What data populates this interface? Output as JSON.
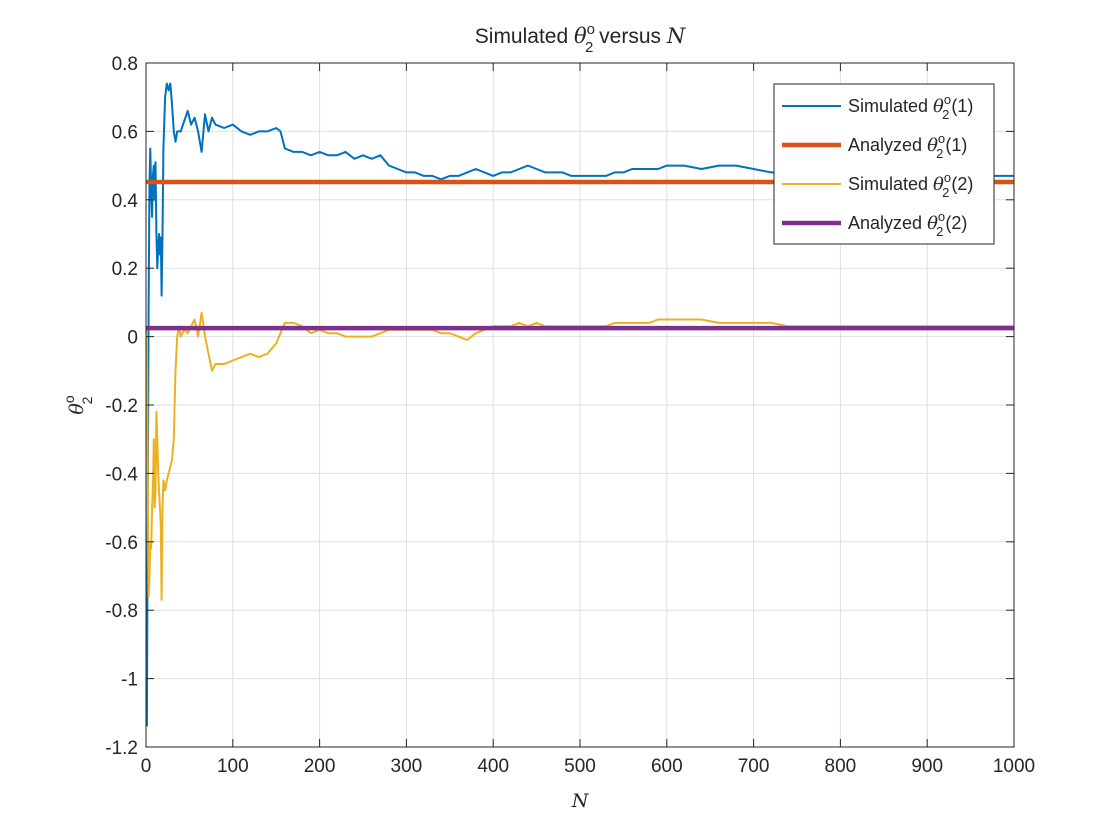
{
  "chart_data": {
    "type": "line",
    "title": {
      "prefix": "Simulated ",
      "symbol": "θ",
      "sup": "o",
      "sub": "2",
      "middle": " versus ",
      "var": "N"
    },
    "xlabel": "N",
    "ylabel": {
      "symbol": "θ",
      "sup": "o",
      "sub": "2"
    },
    "xlim": [
      0,
      1000
    ],
    "ylim": [
      -1.2,
      0.8
    ],
    "xticks": [
      0,
      100,
      200,
      300,
      400,
      500,
      600,
      700,
      800,
      900,
      1000
    ],
    "xtick_labels": [
      "0",
      "100",
      "200",
      "300",
      "400",
      "500",
      "600",
      "700",
      "800",
      "900",
      "1000"
    ],
    "yticks": [
      0.8,
      0.6,
      0.4,
      0.2,
      0,
      -0.2,
      -0.4,
      -0.6,
      -0.8,
      -1,
      -1.2
    ],
    "ytick_labels": [
      "0.8",
      "0.6",
      "0.4",
      "0.2",
      "0",
      "-0.2",
      "-0.4",
      "-0.6",
      "-0.8",
      "-1",
      "-1.2"
    ],
    "grid": true,
    "legend_position": "top-right",
    "series": [
      {
        "name": "Simulated θ2o(1)",
        "legend": {
          "prefix": "Simulated ",
          "symbol": "θ",
          "sup": "o",
          "sub": "2",
          "suffix": "(1)"
        },
        "color": "#0072BD",
        "width": 2,
        "x": [
          1,
          2,
          3,
          4,
          5,
          6,
          7,
          8,
          9,
          10,
          11,
          12,
          13,
          14,
          15,
          16,
          17,
          18,
          19,
          20,
          22,
          24,
          26,
          28,
          30,
          32,
          34,
          36,
          38,
          40,
          44,
          48,
          52,
          56,
          60,
          64,
          68,
          72,
          76,
          80,
          90,
          100,
          110,
          120,
          130,
          140,
          150,
          155,
          160,
          170,
          180,
          190,
          200,
          210,
          220,
          230,
          240,
          250,
          260,
          270,
          280,
          290,
          300,
          310,
          320,
          330,
          340,
          350,
          360,
          370,
          380,
          390,
          400,
          410,
          420,
          430,
          440,
          450,
          460,
          470,
          480,
          490,
          500,
          510,
          520,
          530,
          540,
          550,
          560,
          570,
          580,
          590,
          600,
          620,
          640,
          660,
          680,
          700,
          720,
          740,
          760,
          780,
          800,
          820,
          840,
          860,
          880,
          900,
          920,
          940,
          960,
          980,
          1000
        ],
        "y": [
          -1.14,
          -0.55,
          0.08,
          0.45,
          0.55,
          0.42,
          0.35,
          0.47,
          0.5,
          0.4,
          0.51,
          0.3,
          0.2,
          0.26,
          0.3,
          0.24,
          0.29,
          0.12,
          0.3,
          0.55,
          0.7,
          0.74,
          0.72,
          0.74,
          0.68,
          0.6,
          0.57,
          0.6,
          0.6,
          0.6,
          0.63,
          0.66,
          0.62,
          0.64,
          0.6,
          0.54,
          0.65,
          0.6,
          0.64,
          0.62,
          0.61,
          0.62,
          0.6,
          0.59,
          0.6,
          0.6,
          0.61,
          0.6,
          0.55,
          0.54,
          0.54,
          0.53,
          0.54,
          0.53,
          0.53,
          0.54,
          0.52,
          0.53,
          0.52,
          0.53,
          0.5,
          0.49,
          0.48,
          0.48,
          0.47,
          0.47,
          0.46,
          0.47,
          0.47,
          0.48,
          0.49,
          0.48,
          0.47,
          0.48,
          0.48,
          0.49,
          0.5,
          0.49,
          0.48,
          0.48,
          0.48,
          0.47,
          0.47,
          0.47,
          0.47,
          0.47,
          0.48,
          0.48,
          0.49,
          0.49,
          0.49,
          0.49,
          0.5,
          0.5,
          0.49,
          0.5,
          0.5,
          0.49,
          0.48,
          0.48,
          0.48,
          0.48,
          0.48,
          0.48,
          0.48,
          0.47,
          0.47,
          0.47,
          0.47,
          0.47,
          0.47,
          0.47,
          0.47
        ]
      },
      {
        "name": "Analyzed θ2o(1)",
        "legend": {
          "prefix": "Analyzed ",
          "symbol": "θ",
          "sup": "o",
          "sub": "2",
          "suffix": "(1)"
        },
        "color": "#D95319",
        "width": 4.5,
        "x": [
          0,
          1000
        ],
        "y": [
          0.452,
          0.452
        ]
      },
      {
        "name": "Simulated θ2o(2)",
        "legend": {
          "prefix": "Simulated ",
          "symbol": "θ",
          "sup": "o",
          "sub": "2",
          "suffix": "(2)"
        },
        "color": "#EDB120",
        "width": 2,
        "x": [
          1,
          2,
          3,
          4,
          5,
          6,
          7,
          8,
          9,
          10,
          11,
          12,
          13,
          14,
          15,
          16,
          17,
          18,
          19,
          20,
          22,
          24,
          26,
          28,
          30,
          32,
          34,
          36,
          38,
          40,
          44,
          48,
          52,
          56,
          60,
          64,
          68,
          72,
          76,
          80,
          90,
          100,
          110,
          120,
          130,
          140,
          150,
          160,
          170,
          180,
          190,
          200,
          210,
          220,
          230,
          240,
          250,
          260,
          270,
          280,
          290,
          300,
          310,
          320,
          330,
          340,
          350,
          360,
          370,
          380,
          390,
          400,
          410,
          420,
          430,
          440,
          450,
          460,
          470,
          480,
          490,
          500,
          510,
          520,
          530,
          540,
          550,
          560,
          570,
          580,
          590,
          600,
          620,
          640,
          660,
          680,
          700,
          720,
          740,
          760,
          780,
          800,
          820,
          840,
          860,
          880,
          900,
          920,
          940,
          960,
          980,
          1000
        ],
        "y": [
          0.03,
          -0.4,
          -0.76,
          -0.7,
          -0.6,
          -0.62,
          -0.5,
          -0.44,
          -0.3,
          -0.5,
          -0.45,
          -0.22,
          -0.3,
          -0.4,
          -0.45,
          -0.5,
          -0.55,
          -0.77,
          -0.5,
          -0.42,
          -0.45,
          -0.42,
          -0.4,
          -0.38,
          -0.36,
          -0.3,
          -0.1,
          0.0,
          0.03,
          0.0,
          0.02,
          0.01,
          0.03,
          0.05,
          0.0,
          0.07,
          0.0,
          -0.05,
          -0.1,
          -0.08,
          -0.08,
          -0.07,
          -0.06,
          -0.05,
          -0.06,
          -0.05,
          -0.02,
          0.04,
          0.04,
          0.03,
          0.01,
          0.02,
          0.01,
          0.01,
          0.0,
          0.0,
          0.0,
          0.0,
          0.01,
          0.02,
          0.02,
          0.02,
          0.02,
          0.02,
          0.02,
          0.01,
          0.01,
          0.0,
          -0.01,
          0.01,
          0.02,
          0.03,
          0.03,
          0.03,
          0.04,
          0.03,
          0.04,
          0.03,
          0.03,
          0.03,
          0.03,
          0.03,
          0.03,
          0.03,
          0.03,
          0.04,
          0.04,
          0.04,
          0.04,
          0.04,
          0.05,
          0.05,
          0.05,
          0.05,
          0.04,
          0.04,
          0.04,
          0.04,
          0.03,
          0.03,
          0.03,
          0.03,
          0.03,
          0.03,
          0.03,
          0.03,
          0.03,
          0.03,
          0.03,
          0.03,
          0.03,
          0.03
        ]
      },
      {
        "name": "Analyzed θ2o(2)",
        "legend": {
          "prefix": "Analyzed ",
          "symbol": "θ",
          "sup": "o",
          "sub": "2",
          "suffix": "(2)"
        },
        "color": "#7E2F8E",
        "width": 4.5,
        "x": [
          0,
          1000
        ],
        "y": [
          0.025,
          0.025
        ]
      }
    ]
  }
}
